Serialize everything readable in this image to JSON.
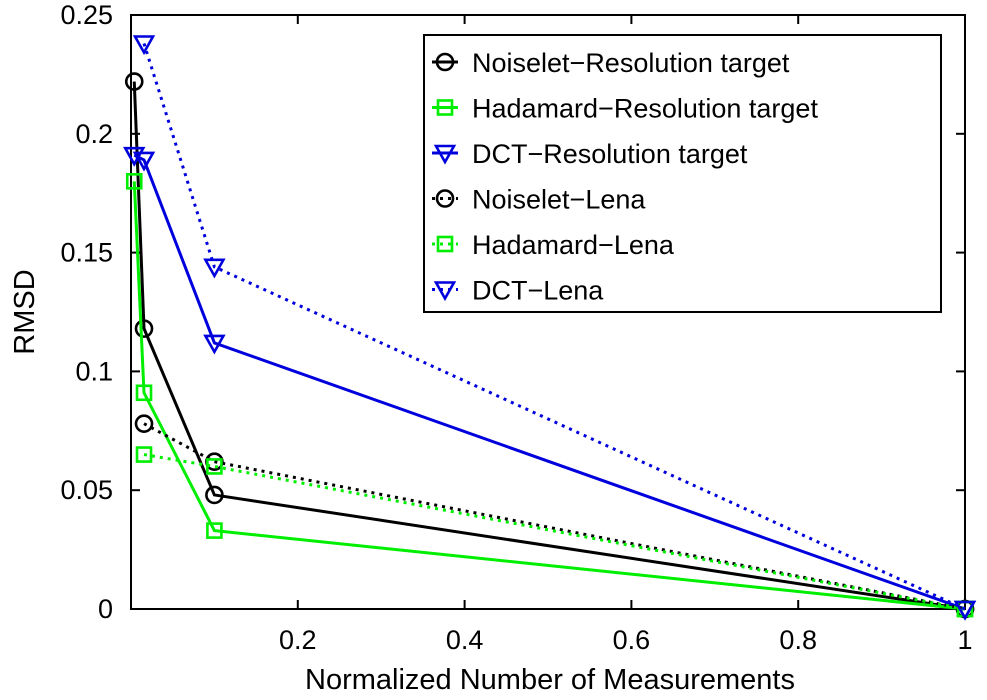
{
  "chart_data": {
    "type": "line",
    "title": "",
    "xlabel": "Normalized Number of Measurements",
    "ylabel": "RMSD",
    "xlim": [
      0,
      1
    ],
    "ylim": [
      0,
      0.25
    ],
    "xticks": [
      0.2,
      0.4,
      0.6,
      0.8,
      1
    ],
    "xtick_labels": [
      "0.2",
      "0.4",
      "0.6",
      "0.8",
      "1"
    ],
    "yticks": [
      0,
      0.05,
      0.1,
      0.15,
      0.2,
      0.25
    ],
    "ytick_labels": [
      "0",
      "0.05",
      "0.1",
      "0.15",
      "0.2",
      "0.25"
    ],
    "grid": false,
    "legend_position": "top-right",
    "series": [
      {
        "name": "Noiselet−Resolution target",
        "color": "#000000",
        "line_style": "solid",
        "marker": "circle",
        "points": [
          {
            "x": 0.0039,
            "y": 0.222
          },
          {
            "x": 0.0156,
            "y": 0.118
          },
          {
            "x": 0.1,
            "y": 0.048
          },
          {
            "x": 1,
            "y": 0.0
          }
        ]
      },
      {
        "name": "Hadamard−Resolution target",
        "color": "#00ee00",
        "line_style": "solid",
        "marker": "square",
        "points": [
          {
            "x": 0.0039,
            "y": 0.18
          },
          {
            "x": 0.0156,
            "y": 0.091
          },
          {
            "x": 0.1,
            "y": 0.033
          },
          {
            "x": 1,
            "y": 0.0
          }
        ]
      },
      {
        "name": "DCT−Resolution target",
        "color": "#0000dd",
        "line_style": "solid",
        "marker": "triangle-down",
        "points": [
          {
            "x": 0.0039,
            "y": 0.191
          },
          {
            "x": 0.0156,
            "y": 0.189
          },
          {
            "x": 0.1,
            "y": 0.112
          },
          {
            "x": 1,
            "y": 0.0
          }
        ]
      },
      {
        "name": "Noiselet−Lena",
        "color": "#000000",
        "line_style": "dotted",
        "marker": "circle",
        "points": [
          {
            "x": 0.0156,
            "y": 0.078
          },
          {
            "x": 0.1,
            "y": 0.062
          },
          {
            "x": 1,
            "y": 0.0
          }
        ]
      },
      {
        "name": "Hadamard−Lena",
        "color": "#00ee00",
        "line_style": "dotted",
        "marker": "square",
        "points": [
          {
            "x": 0.0156,
            "y": 0.065
          },
          {
            "x": 0.1,
            "y": 0.06
          },
          {
            "x": 1,
            "y": 0.0
          }
        ]
      },
      {
        "name": "DCT−Lena",
        "color": "#0000dd",
        "line_style": "dotted",
        "marker": "triangle-down",
        "points": [
          {
            "x": 0.0156,
            "y": 0.238
          },
          {
            "x": 0.1,
            "y": 0.144
          },
          {
            "x": 1,
            "y": 0.0
          }
        ]
      }
    ]
  }
}
